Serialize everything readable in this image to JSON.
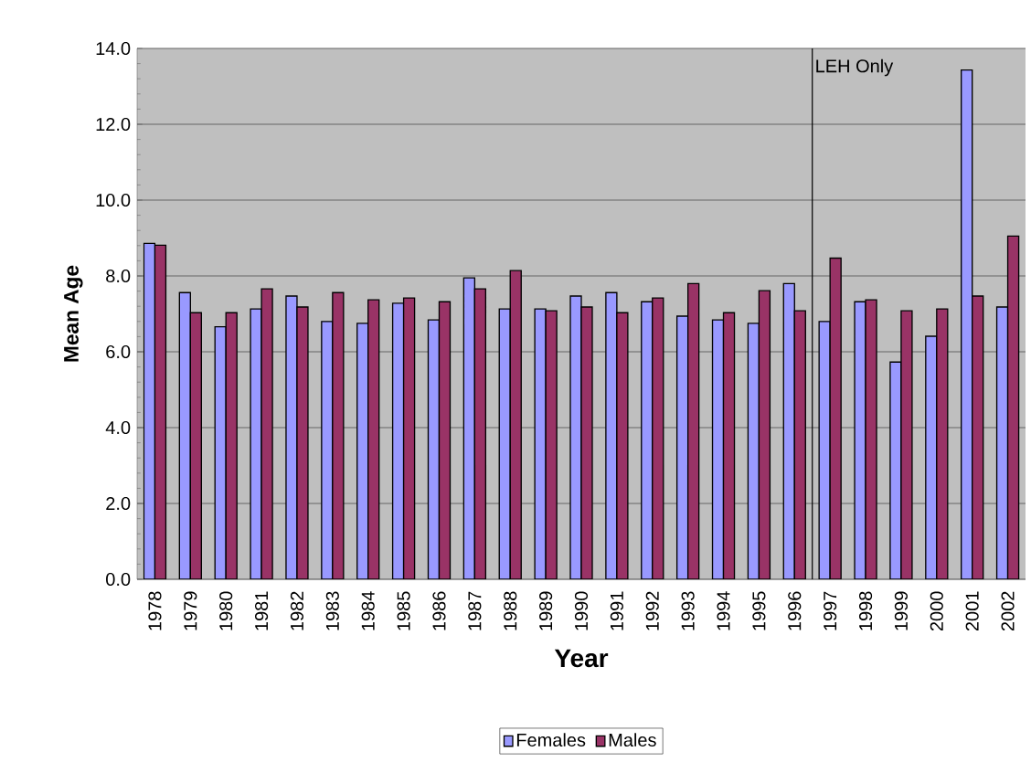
{
  "chart_data": {
    "type": "bar",
    "xlabel": "Year",
    "ylabel": "Mean Age",
    "categories": [
      "1978",
      "1979",
      "1980",
      "1981",
      "1982",
      "1983",
      "1984",
      "1985",
      "1986",
      "1987",
      "1988",
      "1989",
      "1990",
      "1991",
      "1992",
      "1993",
      "1994",
      "1995",
      "1996",
      "1997",
      "1998",
      "1999",
      "2000",
      "2001",
      "2002"
    ],
    "series": [
      {
        "name": "Females",
        "color": "#9999ff",
        "values": [
          8.86,
          7.56,
          6.66,
          7.13,
          7.47,
          6.8,
          6.75,
          7.28,
          6.84,
          7.95,
          7.13,
          7.13,
          7.47,
          7.56,
          7.32,
          6.94,
          6.84,
          6.75,
          7.8,
          6.8,
          7.32,
          5.73,
          6.41,
          13.43,
          7.18
        ]
      },
      {
        "name": "Males",
        "color": "#993366",
        "values": [
          8.81,
          7.03,
          7.03,
          7.66,
          7.18,
          7.56,
          7.37,
          7.42,
          7.32,
          7.66,
          8.14,
          7.08,
          7.18,
          7.03,
          7.42,
          7.8,
          7.03,
          7.61,
          7.08,
          8.47,
          7.37,
          7.08,
          7.13,
          7.47,
          9.05
        ]
      }
    ],
    "ylim": [
      0,
      14
    ],
    "yticks": [
      {
        "value": 0,
        "label": "0.0"
      },
      {
        "value": 2,
        "label": "2.0"
      },
      {
        "value": 4,
        "label": "4.0"
      },
      {
        "value": 6,
        "label": "6.0"
      },
      {
        "value": 8,
        "label": "8.0"
      },
      {
        "value": 10,
        "label": "10.0"
      },
      {
        "value": 12,
        "label": "12.0"
      },
      {
        "value": 14,
        "label": "14.0"
      }
    ],
    "grid": "y",
    "legend": "bottom",
    "ref_lines": [
      {
        "axis": "x",
        "value": "1997",
        "label": "LEH Only"
      }
    ]
  }
}
